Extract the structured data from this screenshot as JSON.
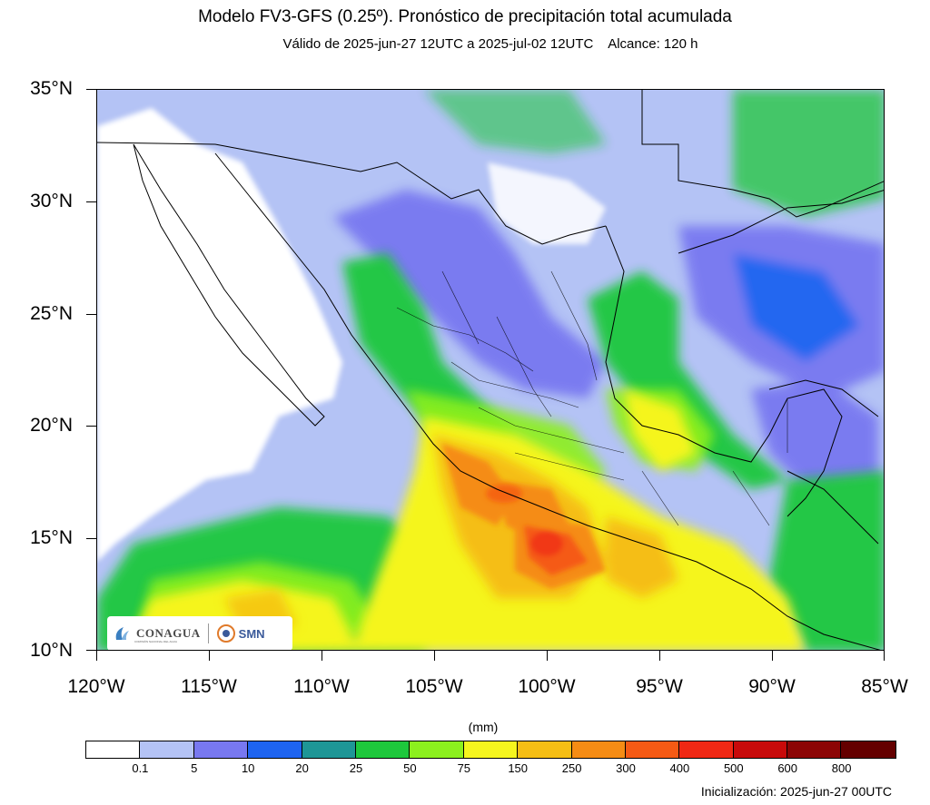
{
  "header": {
    "title": "Modelo FV3-GFS (0.25º). Pronóstico de precipitación total acumulada",
    "subtitle": "Válido de 2025-jun-27 12UTC a 2025-jul-02 12UTC    Alcance: 120 h"
  },
  "map": {
    "lat_labels": [
      "35°N",
      "30°N",
      "25°N",
      "20°N",
      "15°N",
      "10°N"
    ],
    "lon_labels": [
      "120°W",
      "115°W",
      "110°W",
      "105°W",
      "100°W",
      "95°W",
      "90°W",
      "85°W"
    ],
    "extent": {
      "lon_min": -120,
      "lon_max": -85,
      "lat_min": 10,
      "lat_max": 35
    }
  },
  "colorbar": {
    "units": "(mm)",
    "labels": [
      "0.1",
      "5",
      "10",
      "20",
      "25",
      "50",
      "75",
      "150",
      "250",
      "300",
      "400",
      "500",
      "600",
      "800"
    ],
    "colors": [
      "#ffffff",
      "#b4c3f5",
      "#7878f0",
      "#1e64f0",
      "#1e9696",
      "#1ec83c",
      "#8cf01e",
      "#f5f51e",
      "#f5be14",
      "#f58c14",
      "#f55a14",
      "#f02814",
      "#c80a0a",
      "#8c0505",
      "#640000"
    ]
  },
  "footer": {
    "init": "Inicialización: 2025-jun-27 00UTC"
  },
  "logos": {
    "conagua": "CONAGUA",
    "conagua_sub": "COMISIÓN NACIONAL DEL AGUA",
    "smn": "SMN"
  }
}
